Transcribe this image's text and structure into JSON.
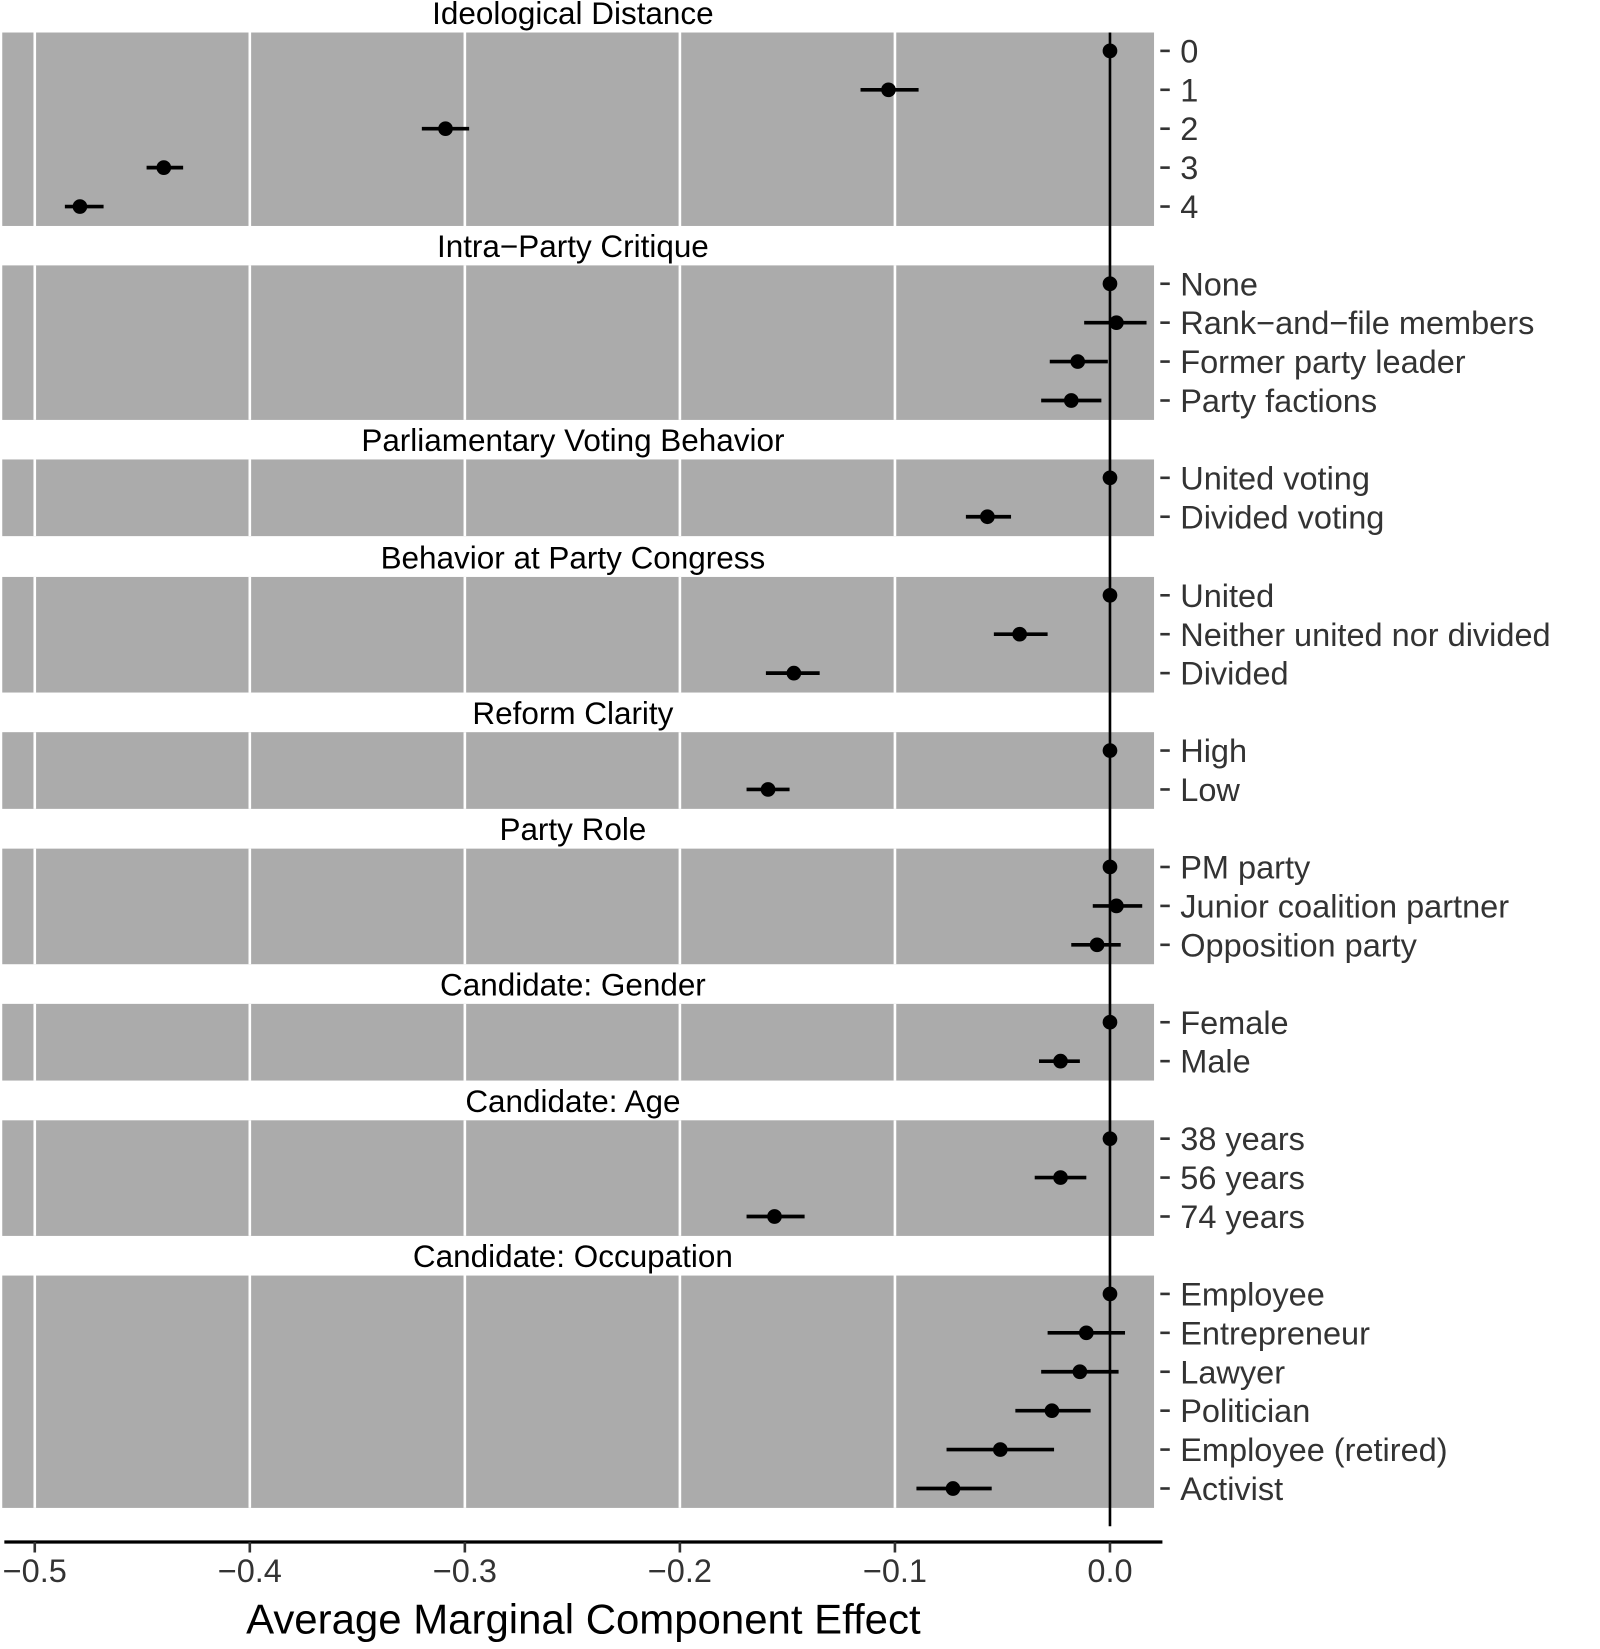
{
  "chart_data": {
    "type": "scatter",
    "subtype": "coefficient-plot-with-intervals",
    "xlabel": "Average Marginal Component Effect",
    "xlim": [
      -0.5,
      0.02
    ],
    "xticks": [
      "-0.5",
      "-0.4",
      "-0.3",
      "-0.2",
      "-0.1",
      "0.0"
    ],
    "grid": true,
    "colors": {
      "panel": "#ababab",
      "grid": "#ffffff",
      "point": "#000000"
    },
    "panels": [
      {
        "title": "Ideological Distance",
        "levels": [
          {
            "label": "0",
            "est": 0,
            "lo": 0,
            "hi": 0
          },
          {
            "label": "1",
            "est": -0.103,
            "lo": -0.116,
            "hi": -0.089
          },
          {
            "label": "2",
            "est": -0.309,
            "lo": -0.32,
            "hi": -0.298
          },
          {
            "label": "3",
            "est": -0.44,
            "lo": -0.448,
            "hi": -0.431
          },
          {
            "label": "4",
            "est": -0.479,
            "lo": -0.486,
            "hi": -0.468
          }
        ]
      },
      {
        "title": "Intra−Party Critique",
        "levels": [
          {
            "label": "None",
            "est": 0,
            "lo": 0,
            "hi": 0
          },
          {
            "label": "Rank−and−file members",
            "est": 0.003,
            "lo": -0.012,
            "hi": 0.017
          },
          {
            "label": "Former party leader",
            "est": -0.015,
            "lo": -0.028,
            "hi": -0.001
          },
          {
            "label": "Party factions",
            "est": -0.018,
            "lo": -0.032,
            "hi": -0.004
          }
        ]
      },
      {
        "title": "Parliamentary Voting Behavior",
        "levels": [
          {
            "label": "United voting",
            "est": 0,
            "lo": 0,
            "hi": 0
          },
          {
            "label": "Divided voting",
            "est": -0.057,
            "lo": -0.067,
            "hi": -0.046
          }
        ]
      },
      {
        "title": "Behavior at Party Congress",
        "levels": [
          {
            "label": "United",
            "est": 0,
            "lo": 0,
            "hi": 0
          },
          {
            "label": "Neither united nor divided",
            "est": -0.042,
            "lo": -0.054,
            "hi": -0.029
          },
          {
            "label": "Divided",
            "est": -0.147,
            "lo": -0.16,
            "hi": -0.135
          }
        ]
      },
      {
        "title": "Reform Clarity",
        "levels": [
          {
            "label": "High",
            "est": 0,
            "lo": 0,
            "hi": 0
          },
          {
            "label": "Low",
            "est": -0.159,
            "lo": -0.169,
            "hi": -0.149
          }
        ]
      },
      {
        "title": "Party Role",
        "levels": [
          {
            "label": "PM party",
            "est": 0,
            "lo": 0,
            "hi": 0
          },
          {
            "label": "Junior coalition partner",
            "est": 0.003,
            "lo": -0.008,
            "hi": 0.015
          },
          {
            "label": "Opposition party",
            "est": -0.006,
            "lo": -0.018,
            "hi": 0.005
          }
        ]
      },
      {
        "title": "Candidate: Gender",
        "levels": [
          {
            "label": "Female",
            "est": 0,
            "lo": 0,
            "hi": 0
          },
          {
            "label": "Male",
            "est": -0.023,
            "lo": -0.033,
            "hi": -0.014
          }
        ]
      },
      {
        "title": "Candidate: Age",
        "levels": [
          {
            "label": "38 years",
            "est": 0,
            "lo": 0,
            "hi": 0
          },
          {
            "label": "56 years",
            "est": -0.023,
            "lo": -0.035,
            "hi": -0.011
          },
          {
            "label": "74 years",
            "est": -0.156,
            "lo": -0.169,
            "hi": -0.142
          }
        ]
      },
      {
        "title": "Candidate: Occupation",
        "levels": [
          {
            "label": "Employee",
            "est": 0,
            "lo": 0,
            "hi": 0
          },
          {
            "label": "Entrepreneur",
            "est": -0.011,
            "lo": -0.029,
            "hi": 0.007
          },
          {
            "label": "Lawyer",
            "est": -0.014,
            "lo": -0.032,
            "hi": 0.004
          },
          {
            "label": "Politician",
            "est": -0.027,
            "lo": -0.044,
            "hi": -0.009
          },
          {
            "label": "Employee (retired)",
            "est": -0.051,
            "lo": -0.076,
            "hi": -0.026
          },
          {
            "label": "Activist",
            "est": -0.073,
            "lo": -0.09,
            "hi": -0.055
          }
        ]
      }
    ]
  }
}
